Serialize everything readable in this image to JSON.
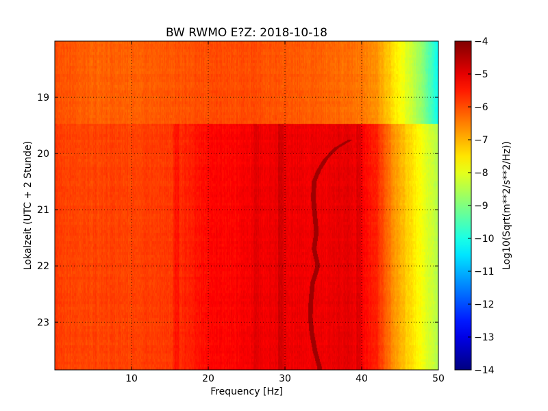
{
  "chart_data": {
    "type": "heatmap",
    "title": "BW RWMO E?Z: 2018-10-18",
    "xlabel": "Frequency [Hz]",
    "ylabel": "Lokalzeit (UTC + 2 Stunde)",
    "xlim": [
      0,
      50
    ],
    "ylim_hours": [
      23.85,
      18.0
    ],
    "y_axis_inverted": true,
    "x_ticks": [
      10,
      20,
      30,
      40,
      50
    ],
    "x_tick_labels": [
      "10",
      "20",
      "30",
      "40",
      "50"
    ],
    "y_ticks": [
      19,
      20,
      21,
      22,
      23
    ],
    "y_tick_labels": [
      "19",
      "20",
      "21",
      "22",
      "23"
    ],
    "grid": true,
    "colorbar": {
      "label": "Log10(Sqrt(m**2/s**2/Hz))",
      "colormap": "jet",
      "vmin": -14,
      "vmax": -4,
      "ticks": [
        -4,
        -5,
        -6,
        -7,
        -8,
        -9,
        -10,
        -11,
        -12,
        -13,
        -14
      ],
      "tick_labels": [
        "−4",
        "−5",
        "−6",
        "−7",
        "−8",
        "−9",
        "−10",
        "−11",
        "−12",
        "−13",
        "−14"
      ]
    },
    "regime_change_hour": 19.48,
    "spectrum_before": {
      "freq_hz": [
        0,
        5,
        10,
        15,
        20,
        25,
        30,
        35,
        40,
        42,
        44,
        46,
        48,
        50
      ],
      "log10_amp": [
        -6.0,
        -6.2,
        -6.2,
        -6.1,
        -6.0,
        -6.0,
        -6.1,
        -6.2,
        -6.4,
        -6.7,
        -7.4,
        -8.1,
        -8.9,
        -10.2
      ]
    },
    "spectrum_after": {
      "freq_hz": [
        0,
        2,
        5,
        10,
        15,
        17,
        19,
        20,
        22,
        25,
        28,
        30,
        33,
        35,
        38,
        40,
        42,
        44,
        46,
        48,
        50
      ],
      "log10_amp": [
        -5.8,
        -5.9,
        -5.9,
        -5.9,
        -5.8,
        -5.6,
        -5.4,
        -5.3,
        -5.3,
        -5.2,
        -5.1,
        -5.1,
        -5.1,
        -5.1,
        -5.0,
        -5.2,
        -5.6,
        -6.6,
        -7.3,
        -7.9,
        -8.5
      ]
    },
    "vertical_bands": [
      {
        "freq_hz": 15.8,
        "delta": 0.25
      },
      {
        "freq_hz": 26.3,
        "delta": 0.15
      },
      {
        "freq_hz": 29.5,
        "delta": 0.3
      },
      {
        "freq_hz": 39.6,
        "delta": 0.25
      }
    ],
    "gliding_line": {
      "time_hour": [
        19.75,
        19.9,
        20.1,
        20.3,
        20.5,
        20.8,
        21.1,
        21.4,
        21.7,
        22.0,
        22.3,
        22.6,
        22.9,
        23.2,
        23.5,
        23.8
      ],
      "freq_hz": [
        38.6,
        36.7,
        35.3,
        34.4,
        33.8,
        33.7,
        33.9,
        34.1,
        33.8,
        34.3,
        33.6,
        33.4,
        33.3,
        33.5,
        33.9,
        34.5
      ],
      "log10_amp": -4.3
    }
  }
}
